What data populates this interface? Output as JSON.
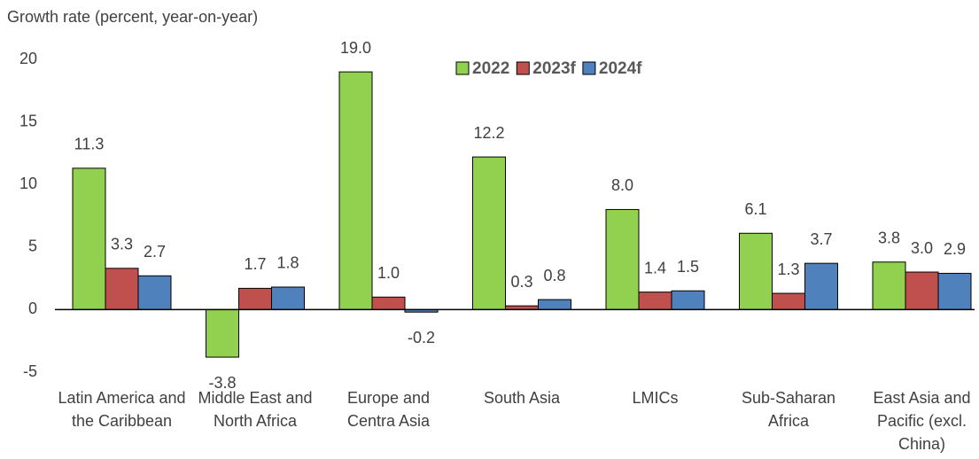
{
  "chart_data": {
    "type": "bar",
    "title": "Growth rate (percent, year-on-year)",
    "categories": [
      "Latin America and the Caribbean",
      "Middle East and North Africa",
      "Europe and Centra Asia",
      "South Asia",
      "LMICs",
      "Sub-Saharan Africa",
      "East Asia and Pacific (excl. China)"
    ],
    "series": [
      {
        "name": "2022",
        "color": "#92d050",
        "values": [
          11.3,
          -3.8,
          19.0,
          12.2,
          8.0,
          6.1,
          3.8
        ],
        "value_labels": [
          "11.3",
          "-3.8",
          "19.0",
          "12.2",
          "8.0",
          "6.1",
          "3.8"
        ]
      },
      {
        "name": "2023f",
        "color": "#c0504d",
        "values": [
          3.3,
          1.7,
          1.0,
          0.3,
          1.4,
          1.3,
          3.0
        ],
        "value_labels": [
          "3.3",
          "1.7",
          "1.0",
          "0.3",
          "1.4",
          "1.3",
          "3.0"
        ]
      },
      {
        "name": "2024f",
        "color": "#4f81bd",
        "values": [
          2.7,
          1.8,
          -0.2,
          0.8,
          1.5,
          3.7,
          2.9
        ],
        "value_labels": [
          "2.7",
          "1.8",
          "-0.2",
          "0.8",
          "1.5",
          "3.7",
          "2.9"
        ]
      }
    ],
    "ylim": [
      -5,
      20
    ],
    "yticks": [
      -5,
      0,
      5,
      10,
      15,
      20
    ]
  }
}
